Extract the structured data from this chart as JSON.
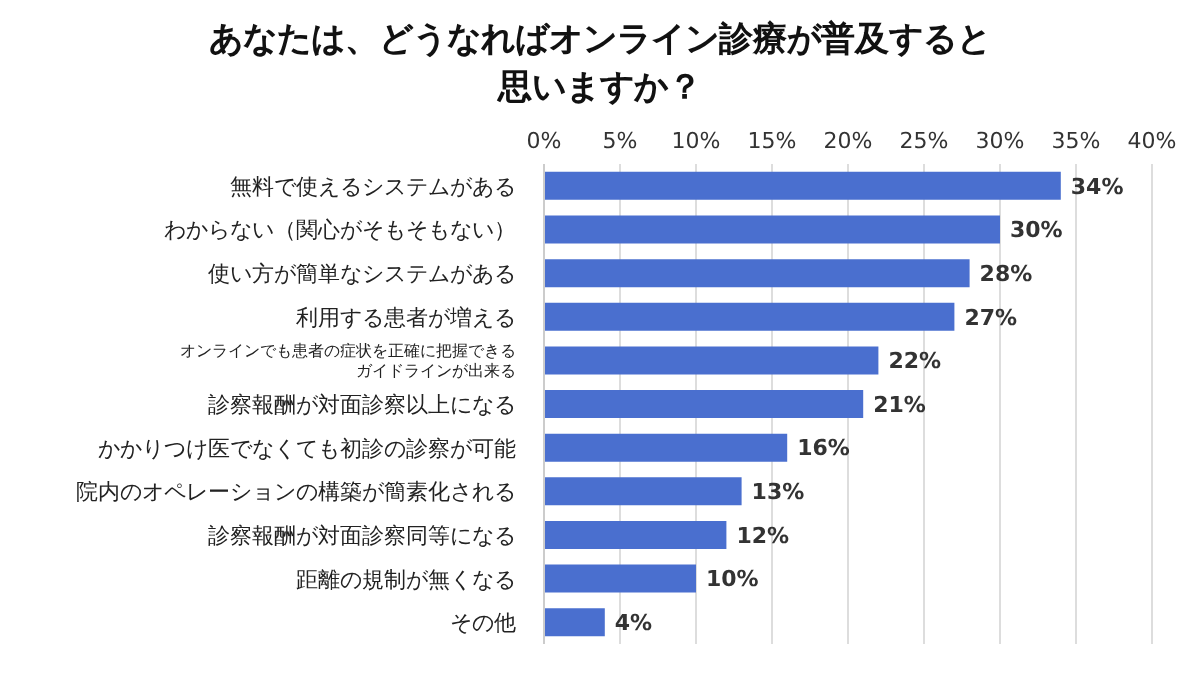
{
  "chart_data": {
    "type": "bar",
    "orientation": "horizontal",
    "title": "あなたは、どうなればオンライン診療が普及すると思いますか？",
    "categories": [
      "無料で使えるシステムがある",
      "わからない（関心がそもそもない）",
      "使い方が簡単なシステムがある",
      "利用する患者が増える",
      "オンラインでも患者の症状を正確に把握できるガイドラインが出来る",
      "診察報酬が対面診察以上になる",
      "かかりつけ医でなくても初診の診察が可能",
      "院内のオペレーションの構築が簡素化される",
      "診察報酬が対面診察同等になる",
      "距離の規制が無くなる",
      "その他"
    ],
    "values": [
      34,
      30,
      28,
      27,
      22,
      21,
      16,
      13,
      12,
      10,
      4
    ],
    "value_labels": [
      "34%",
      "30%",
      "28%",
      "27%",
      "22%",
      "21%",
      "16%",
      "13%",
      "12%",
      "10%",
      "4%"
    ],
    "color": "#4a6fcf",
    "xlim": [
      0,
      40
    ],
    "xticks": [
      {
        "value": 0,
        "label": "0%"
      },
      {
        "value": 5,
        "label": "5%"
      },
      {
        "value": 10,
        "label": "10%"
      },
      {
        "value": 15,
        "label": "15%"
      },
      {
        "value": 20,
        "label": "20%"
      },
      {
        "value": 25,
        "label": "25%"
      },
      {
        "value": 30,
        "label": "30%"
      },
      {
        "value": 35,
        "label": "35%"
      },
      {
        "value": 40,
        "label": "40%"
      }
    ],
    "grid": "x",
    "legend": false
  }
}
